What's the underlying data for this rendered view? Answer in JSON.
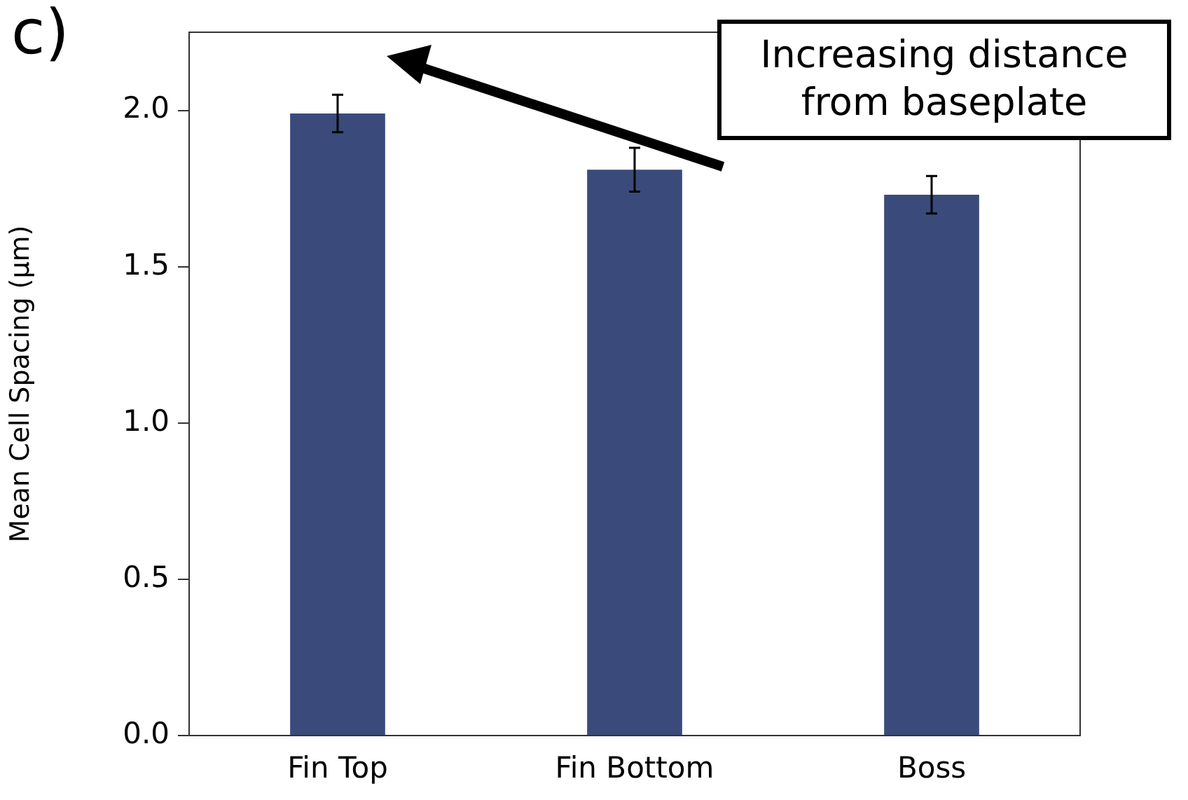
{
  "chart_data": {
    "type": "bar",
    "ylabel": "Mean Cell Spacing (µm)",
    "categories": [
      "Fin Top",
      "Fin Bottom",
      "Boss"
    ],
    "values": [
      1.99,
      1.81,
      1.73
    ],
    "errors": [
      0.06,
      0.07,
      0.06
    ],
    "color": "#3a4b7b",
    "ylim": [
      0,
      2.25
    ],
    "yticks": [
      {
        "value": 0,
        "label": "0.0"
      },
      {
        "value": 0.5,
        "label": "0.5"
      },
      {
        "value": 1,
        "label": "1.0"
      },
      {
        "value": 1.5,
        "label": "1.5"
      },
      {
        "value": 2,
        "label": "2.0"
      }
    ],
    "grid": false,
    "legend": false,
    "annotations": [
      "c)",
      "Increasing distance from baseplate"
    ]
  }
}
